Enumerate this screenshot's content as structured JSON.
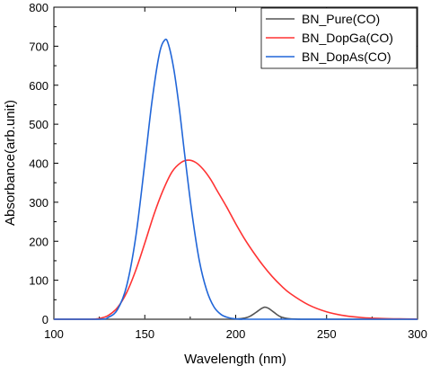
{
  "chart_data": {
    "type": "line",
    "title": "",
    "xlabel": "Wavelength (nm)",
    "ylabel": "Absorbance(arb.unit)",
    "xlim": [
      100,
      300
    ],
    "ylim": [
      0,
      800
    ],
    "x_ticks": [
      100,
      150,
      200,
      250,
      300
    ],
    "y_ticks": [
      0,
      100,
      200,
      300,
      400,
      500,
      600,
      700,
      800
    ],
    "grid": false,
    "legend_position": "top-right",
    "series": [
      {
        "name": "BN_Pure(CO)",
        "color": "#555555",
        "x": [
          100,
          195,
          200,
          205,
          208,
          211,
          214,
          216,
          218,
          221,
          224,
          227,
          230,
          235,
          240,
          300
        ],
        "y": [
          0,
          0,
          0.5,
          3,
          8,
          17,
          27,
          31,
          28,
          18,
          8,
          3,
          1,
          0.2,
          0,
          0
        ]
      },
      {
        "name": "BN_DopGa(CO)",
        "color": "#ff3333",
        "x": [
          100,
          120,
          125,
          130,
          135,
          140,
          145,
          150,
          155,
          160,
          165,
          170,
          174,
          178,
          182,
          186,
          190,
          195,
          200,
          205,
          210,
          215,
          220,
          225,
          230,
          240,
          250,
          260,
          270,
          280,
          290,
          300
        ],
        "y": [
          0,
          0,
          2,
          10,
          30,
          68,
          125,
          195,
          268,
          330,
          378,
          402,
          408,
          402,
          385,
          360,
          328,
          288,
          245,
          205,
          170,
          138,
          110,
          86,
          66,
          37,
          19,
          9,
          4,
          2,
          1,
          0.5
        ]
      },
      {
        "name": "BN_DopAs(CO)",
        "color": "#2166d8",
        "x": [
          100,
          125,
          130,
          135,
          140,
          145,
          150,
          154,
          158,
          161,
          163,
          166,
          169,
          172,
          176,
          180,
          184,
          188,
          192,
          196,
          200,
          205,
          210,
          300
        ],
        "y": [
          0,
          0,
          5,
          25,
          85,
          210,
          400,
          560,
          680,
          716,
          705,
          640,
          540,
          420,
          270,
          150,
          75,
          32,
          12,
          4,
          1,
          0.2,
          0,
          0
        ]
      }
    ]
  }
}
